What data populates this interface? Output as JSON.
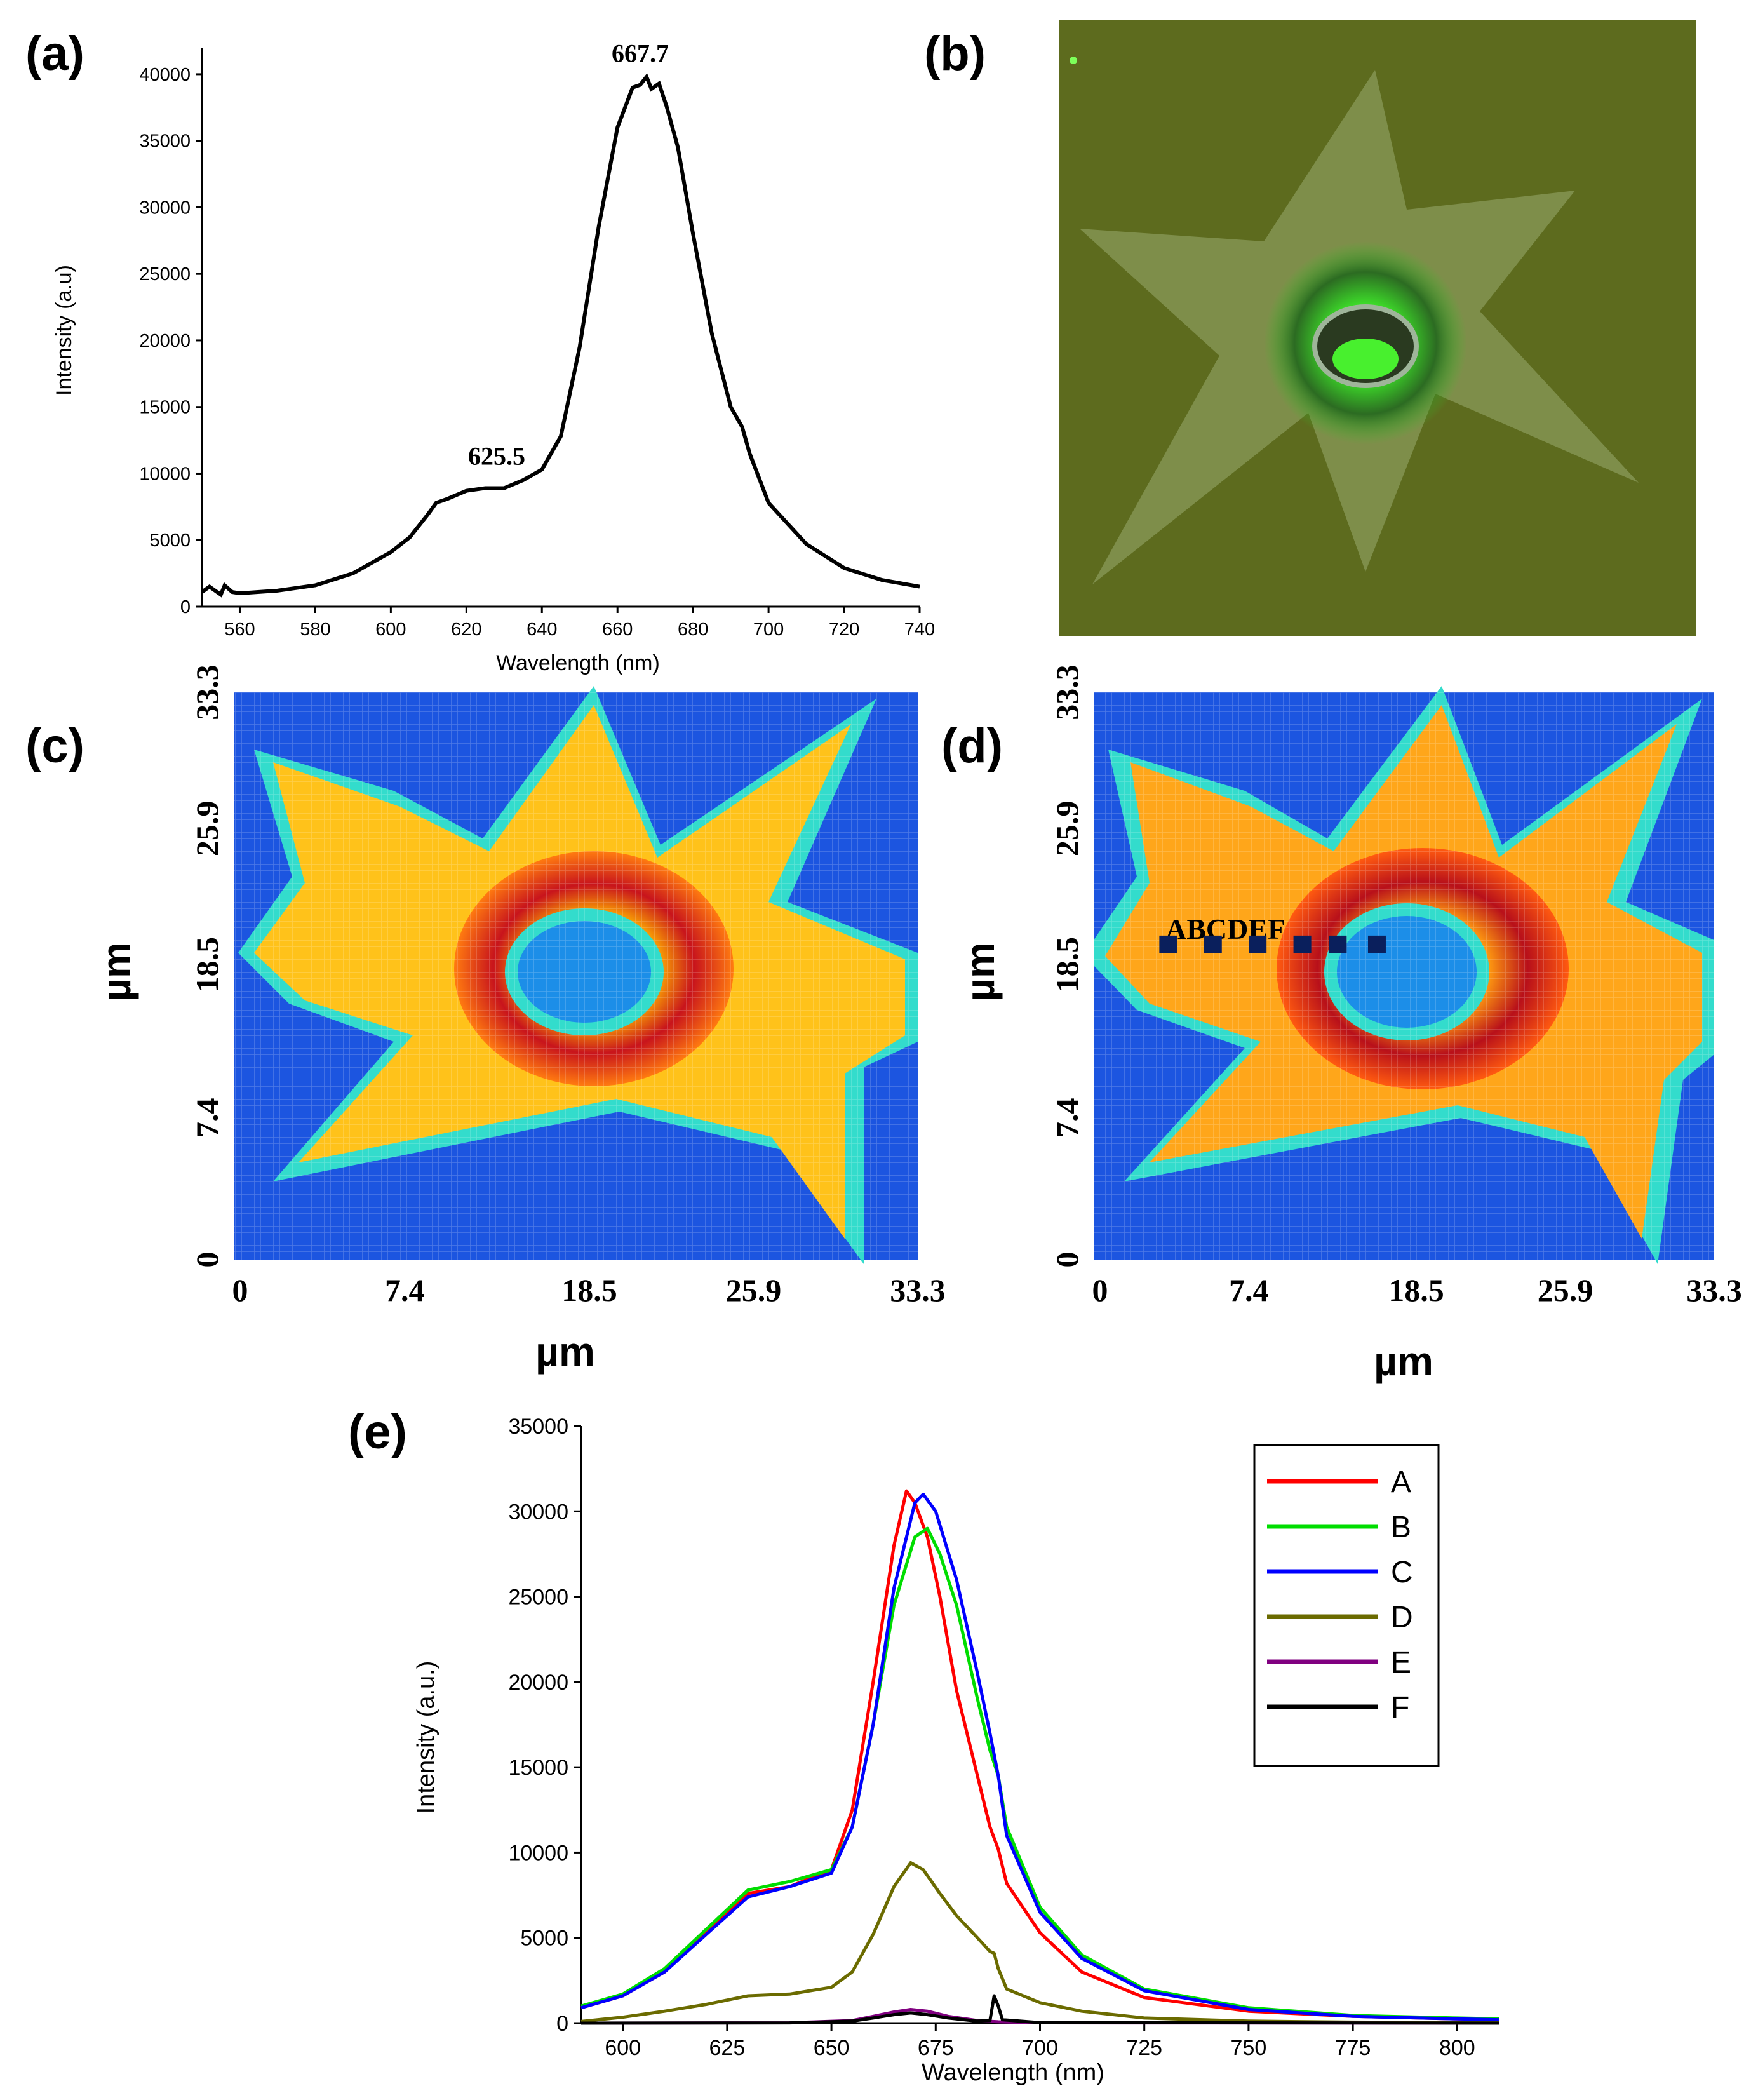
{
  "panel_labels": {
    "a": "(a)",
    "b": "(b)",
    "c": "(c)",
    "d": "(d)",
    "e": "(e)"
  },
  "colors": {
    "A": "#ff0000",
    "B": "#00dd00",
    "C": "#0000ff",
    "D": "#6b6b00",
    "E": "#800080",
    "F": "#000000",
    "map_background": "#1c55e0",
    "map_edge": "#33dccc",
    "map_body": "#ffc21a",
    "map_ring": "#c8141c",
    "photo_background": "#5d6b1e",
    "photo_star": "#8a9a5a",
    "photo_center": "#2fe01f"
  },
  "chart_data": [
    {
      "panel": "a",
      "type": "line",
      "xlabel": "Wavelength (nm)",
      "ylabel": "Intensity (a.u)",
      "xlim": [
        550,
        740
      ],
      "ylim": [
        0,
        42000
      ],
      "x_ticks": [
        560,
        580,
        600,
        620,
        640,
        660,
        680,
        700,
        720,
        740
      ],
      "y_ticks": [
        0,
        5000,
        10000,
        15000,
        20000,
        25000,
        30000,
        35000,
        40000
      ],
      "annotations": [
        {
          "text": "667.7",
          "x": 667.7,
          "y": 39500
        },
        {
          "text": "625.5",
          "x": 625.5,
          "y": 9000
        }
      ],
      "series": [
        {
          "name": "spectrum",
          "points": [
            [
              550,
              1100
            ],
            [
              552,
              1500
            ],
            [
              553,
              1300
            ],
            [
              555,
              900
            ],
            [
              556,
              1600
            ],
            [
              558,
              1100
            ],
            [
              560,
              1000
            ],
            [
              570,
              1200
            ],
            [
              580,
              1600
            ],
            [
              590,
              2500
            ],
            [
              600,
              4100
            ],
            [
              605,
              5200
            ],
            [
              610,
              7000
            ],
            [
              612,
              7800
            ],
            [
              615,
              8100
            ],
            [
              620,
              8700
            ],
            [
              625,
              8900
            ],
            [
              630,
              8900
            ],
            [
              635,
              9500
            ],
            [
              640,
              10300
            ],
            [
              645,
              12800
            ],
            [
              650,
              19500
            ],
            [
              655,
              28500
            ],
            [
              660,
              36000
            ],
            [
              664,
              39000
            ],
            [
              666,
              39200
            ],
            [
              667.7,
              39800
            ],
            [
              669,
              38900
            ],
            [
              671,
              39300
            ],
            [
              673,
              37600
            ],
            [
              676,
              34500
            ],
            [
              680,
              28000
            ],
            [
              685,
              20500
            ],
            [
              690,
              15000
            ],
            [
              693,
              13500
            ],
            [
              695,
              11500
            ],
            [
              700,
              7800
            ],
            [
              710,
              4700
            ],
            [
              720,
              2900
            ],
            [
              730,
              2000
            ],
            [
              740,
              1500
            ]
          ]
        }
      ]
    },
    {
      "panel": "c",
      "type": "heatmap",
      "xlabel": "µm",
      "ylabel": "µm",
      "x_ticks": [
        "0",
        "7.4",
        "18.5",
        "25.9",
        "33.3"
      ],
      "y_ticks": [
        "0",
        "7.4",
        "18.5",
        "25.9",
        "33.3"
      ],
      "xlim": [
        0,
        33.3
      ],
      "ylim": [
        0,
        33.3
      ],
      "colormap": "jet",
      "description_values": {
        "background": "low",
        "star_body": "medium",
        "ring": "high",
        "center": "low"
      }
    },
    {
      "panel": "d",
      "type": "heatmap",
      "xlabel": "µm",
      "ylabel": "µm",
      "x_ticks": [
        "0",
        "7.4",
        "18.5",
        "25.9",
        "33.3"
      ],
      "y_ticks": [
        "0",
        "7.4",
        "18.5",
        "25.9",
        "33.3"
      ],
      "xlim": [
        0,
        33.3
      ],
      "ylim": [
        0,
        33.3
      ],
      "colormap": "jet",
      "point_labels": "ABCDEF",
      "points": [
        {
          "name": "A",
          "x": 4.0,
          "y": 18.5
        },
        {
          "name": "B",
          "x": 6.4,
          "y": 18.5
        },
        {
          "name": "C",
          "x": 8.8,
          "y": 18.5
        },
        {
          "name": "D",
          "x": 11.2,
          "y": 18.5
        },
        {
          "name": "E",
          "x": 13.1,
          "y": 18.5
        },
        {
          "name": "F",
          "x": 15.2,
          "y": 18.5
        }
      ]
    },
    {
      "panel": "e",
      "type": "line",
      "xlabel": "Wavelength (nm)",
      "ylabel": "Intensity (a.u.)",
      "xlim": [
        590,
        810
      ],
      "ylim": [
        0,
        35000
      ],
      "x_ticks": [
        600,
        625,
        650,
        675,
        700,
        725,
        750,
        775,
        800
      ],
      "y_ticks": [
        0,
        5000,
        10000,
        15000,
        20000,
        25000,
        30000,
        35000
      ],
      "legend": [
        "A",
        "B",
        "C",
        "D",
        "E",
        "F"
      ],
      "legend_position": "top-right",
      "series": [
        {
          "name": "A",
          "points": [
            [
              590,
              900
            ],
            [
              600,
              1600
            ],
            [
              610,
              3000
            ],
            [
              620,
              5300
            ],
            [
              630,
              7600
            ],
            [
              640,
              8000
            ],
            [
              650,
              9000
            ],
            [
              655,
              12500
            ],
            [
              660,
              20000
            ],
            [
              665,
              28000
            ],
            [
              668,
              31200
            ],
            [
              670,
              30500
            ],
            [
              673,
              28500
            ],
            [
              676,
              25000
            ],
            [
              680,
              19500
            ],
            [
              685,
              14500
            ],
            [
              688,
              11500
            ],
            [
              690,
              10200
            ],
            [
              692,
              8200
            ],
            [
              700,
              5300
            ],
            [
              710,
              3000
            ],
            [
              725,
              1500
            ],
            [
              750,
              700
            ],
            [
              775,
              400
            ],
            [
              800,
              250
            ],
            [
              810,
              200
            ]
          ]
        },
        {
          "name": "B",
          "points": [
            [
              590,
              1000
            ],
            [
              600,
              1700
            ],
            [
              610,
              3200
            ],
            [
              620,
              5500
            ],
            [
              630,
              7800
            ],
            [
              640,
              8300
            ],
            [
              650,
              9000
            ],
            [
              655,
              11500
            ],
            [
              660,
              17500
            ],
            [
              665,
              24500
            ],
            [
              670,
              28500
            ],
            [
              673,
              29000
            ],
            [
              676,
              27500
            ],
            [
              680,
              24500
            ],
            [
              685,
              19000
            ],
            [
              688,
              16000
            ],
            [
              690,
              14500
            ],
            [
              692,
              11500
            ],
            [
              700,
              6800
            ],
            [
              710,
              4000
            ],
            [
              725,
              2000
            ],
            [
              750,
              900
            ],
            [
              775,
              450
            ],
            [
              800,
              300
            ],
            [
              810,
              250
            ]
          ]
        },
        {
          "name": "C",
          "points": [
            [
              590,
              900
            ],
            [
              600,
              1600
            ],
            [
              610,
              3000
            ],
            [
              620,
              5200
            ],
            [
              630,
              7400
            ],
            [
              640,
              8000
            ],
            [
              650,
              8800
            ],
            [
              655,
              11500
            ],
            [
              660,
              17500
            ],
            [
              665,
              25500
            ],
            [
              670,
              30500
            ],
            [
              672,
              31000
            ],
            [
              675,
              30000
            ],
            [
              680,
              26000
            ],
            [
              685,
              20500
            ],
            [
              688,
              17000
            ],
            [
              690,
              14500
            ],
            [
              692,
              11000
            ],
            [
              700,
              6500
            ],
            [
              710,
              3800
            ],
            [
              725,
              1900
            ],
            [
              750,
              800
            ],
            [
              775,
              400
            ],
            [
              800,
              250
            ],
            [
              810,
              200
            ]
          ]
        },
        {
          "name": "D",
          "points": [
            [
              590,
              100
            ],
            [
              600,
              350
            ],
            [
              610,
              700
            ],
            [
              620,
              1100
            ],
            [
              630,
              1600
            ],
            [
              640,
              1700
            ],
            [
              650,
              2100
            ],
            [
              655,
              3000
            ],
            [
              660,
              5200
            ],
            [
              665,
              8000
            ],
            [
              669,
              9400
            ],
            [
              672,
              9000
            ],
            [
              676,
              7600
            ],
            [
              680,
              6300
            ],
            [
              685,
              5000
            ],
            [
              688,
              4200
            ],
            [
              689,
              4100
            ],
            [
              690,
              3200
            ],
            [
              692,
              2000
            ],
            [
              700,
              1200
            ],
            [
              710,
              700
            ],
            [
              725,
              300
            ],
            [
              750,
              120
            ],
            [
              775,
              60
            ],
            [
              800,
              40
            ],
            [
              810,
              30
            ]
          ]
        },
        {
          "name": "E",
          "points": [
            [
              590,
              0
            ],
            [
              640,
              20
            ],
            [
              655,
              150
            ],
            [
              660,
              400
            ],
            [
              665,
              650
            ],
            [
              669,
              800
            ],
            [
              673,
              700
            ],
            [
              678,
              400
            ],
            [
              685,
              150
            ],
            [
              690,
              80
            ],
            [
              700,
              20
            ],
            [
              810,
              0
            ]
          ]
        },
        {
          "name": "F",
          "points": [
            [
              590,
              0
            ],
            [
              640,
              15
            ],
            [
              655,
              120
            ],
            [
              660,
              300
            ],
            [
              665,
              500
            ],
            [
              669,
              600
            ],
            [
              673,
              500
            ],
            [
              678,
              300
            ],
            [
              685,
              120
            ],
            [
              688,
              150
            ],
            [
              689,
              1600
            ],
            [
              690,
              1000
            ],
            [
              691,
              200
            ],
            [
              700,
              30
            ],
            [
              810,
              0
            ]
          ]
        }
      ]
    }
  ]
}
